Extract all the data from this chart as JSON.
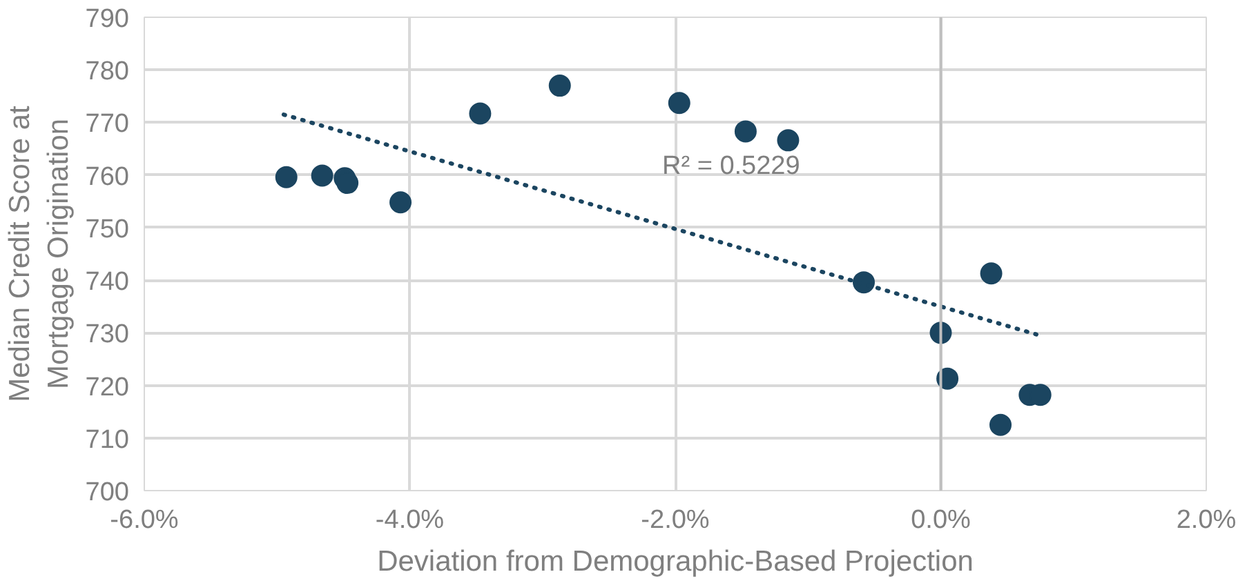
{
  "chart_data": {
    "type": "scatter",
    "xlabel": "Deviation from Demographic-Based Projection",
    "ylabel": "Median Credit Score at\nMortgage Origination",
    "xlim": [
      -6,
      2
    ],
    "ylim": [
      700,
      790
    ],
    "xticks": [
      {
        "value": -6,
        "label": "-6.0%"
      },
      {
        "value": -4,
        "label": "-4.0%"
      },
      {
        "value": -2,
        "label": "-2.0%"
      },
      {
        "value": 0,
        "label": "0.0%"
      },
      {
        "value": 2,
        "label": "2.0%"
      }
    ],
    "yticks": [
      700,
      710,
      720,
      730,
      740,
      750,
      760,
      770,
      780,
      790
    ],
    "grid": true,
    "marker": "circle",
    "series": [
      {
        "color": "#1b4560",
        "x": [
          -4.93,
          -4.66,
          -4.49,
          -4.47,
          -4.07,
          -3.47,
          -2.87,
          -1.97,
          -1.47,
          -1.15,
          -0.58,
          0.38,
          0.0,
          0.05,
          0.45,
          0.67,
          0.75
        ],
        "values": [
          759.6,
          759.9,
          759.4,
          758.5,
          754.8,
          771.7,
          777.0,
          773.7,
          768.3,
          766.6,
          739.6,
          741.3,
          730.0,
          721.3,
          712.5,
          718.2,
          718.2
        ]
      },
      {
        "type": "line",
        "line_style": "dotted",
        "marker": "none",
        "color": "#1b4560",
        "x": [
          -4.95,
          0.72
        ],
        "values": [
          771.5,
          729.7
        ]
      }
    ],
    "ref_lines": [
      {
        "axis": "x",
        "value": 0,
        "color": "#bfbfbf"
      }
    ],
    "annotations": [
      "R² = 0.5229"
    ]
  }
}
